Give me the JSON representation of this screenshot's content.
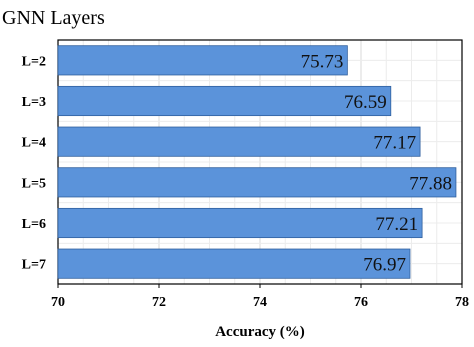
{
  "chart_data": {
    "type": "bar",
    "orientation": "horizontal",
    "title": "GNN Layers",
    "categories": [
      "L=2",
      "L=3",
      "L=4",
      "L=5",
      "L=6",
      "L=7"
    ],
    "values": [
      75.73,
      76.59,
      77.17,
      77.88,
      77.21,
      76.97
    ],
    "value_labels": [
      "75.73",
      "76.59",
      "77.17",
      "77.88",
      "77.21",
      "76.97"
    ],
    "xlabel": "Accuracy (%)",
    "ylabel": "",
    "xlim": [
      70,
      78
    ],
    "x_ticks": [
      "70",
      "72",
      "74",
      "76",
      "78"
    ],
    "grid": true,
    "bar_color": "#5b93da",
    "bar_edge_color": "#2f5f9e"
  }
}
